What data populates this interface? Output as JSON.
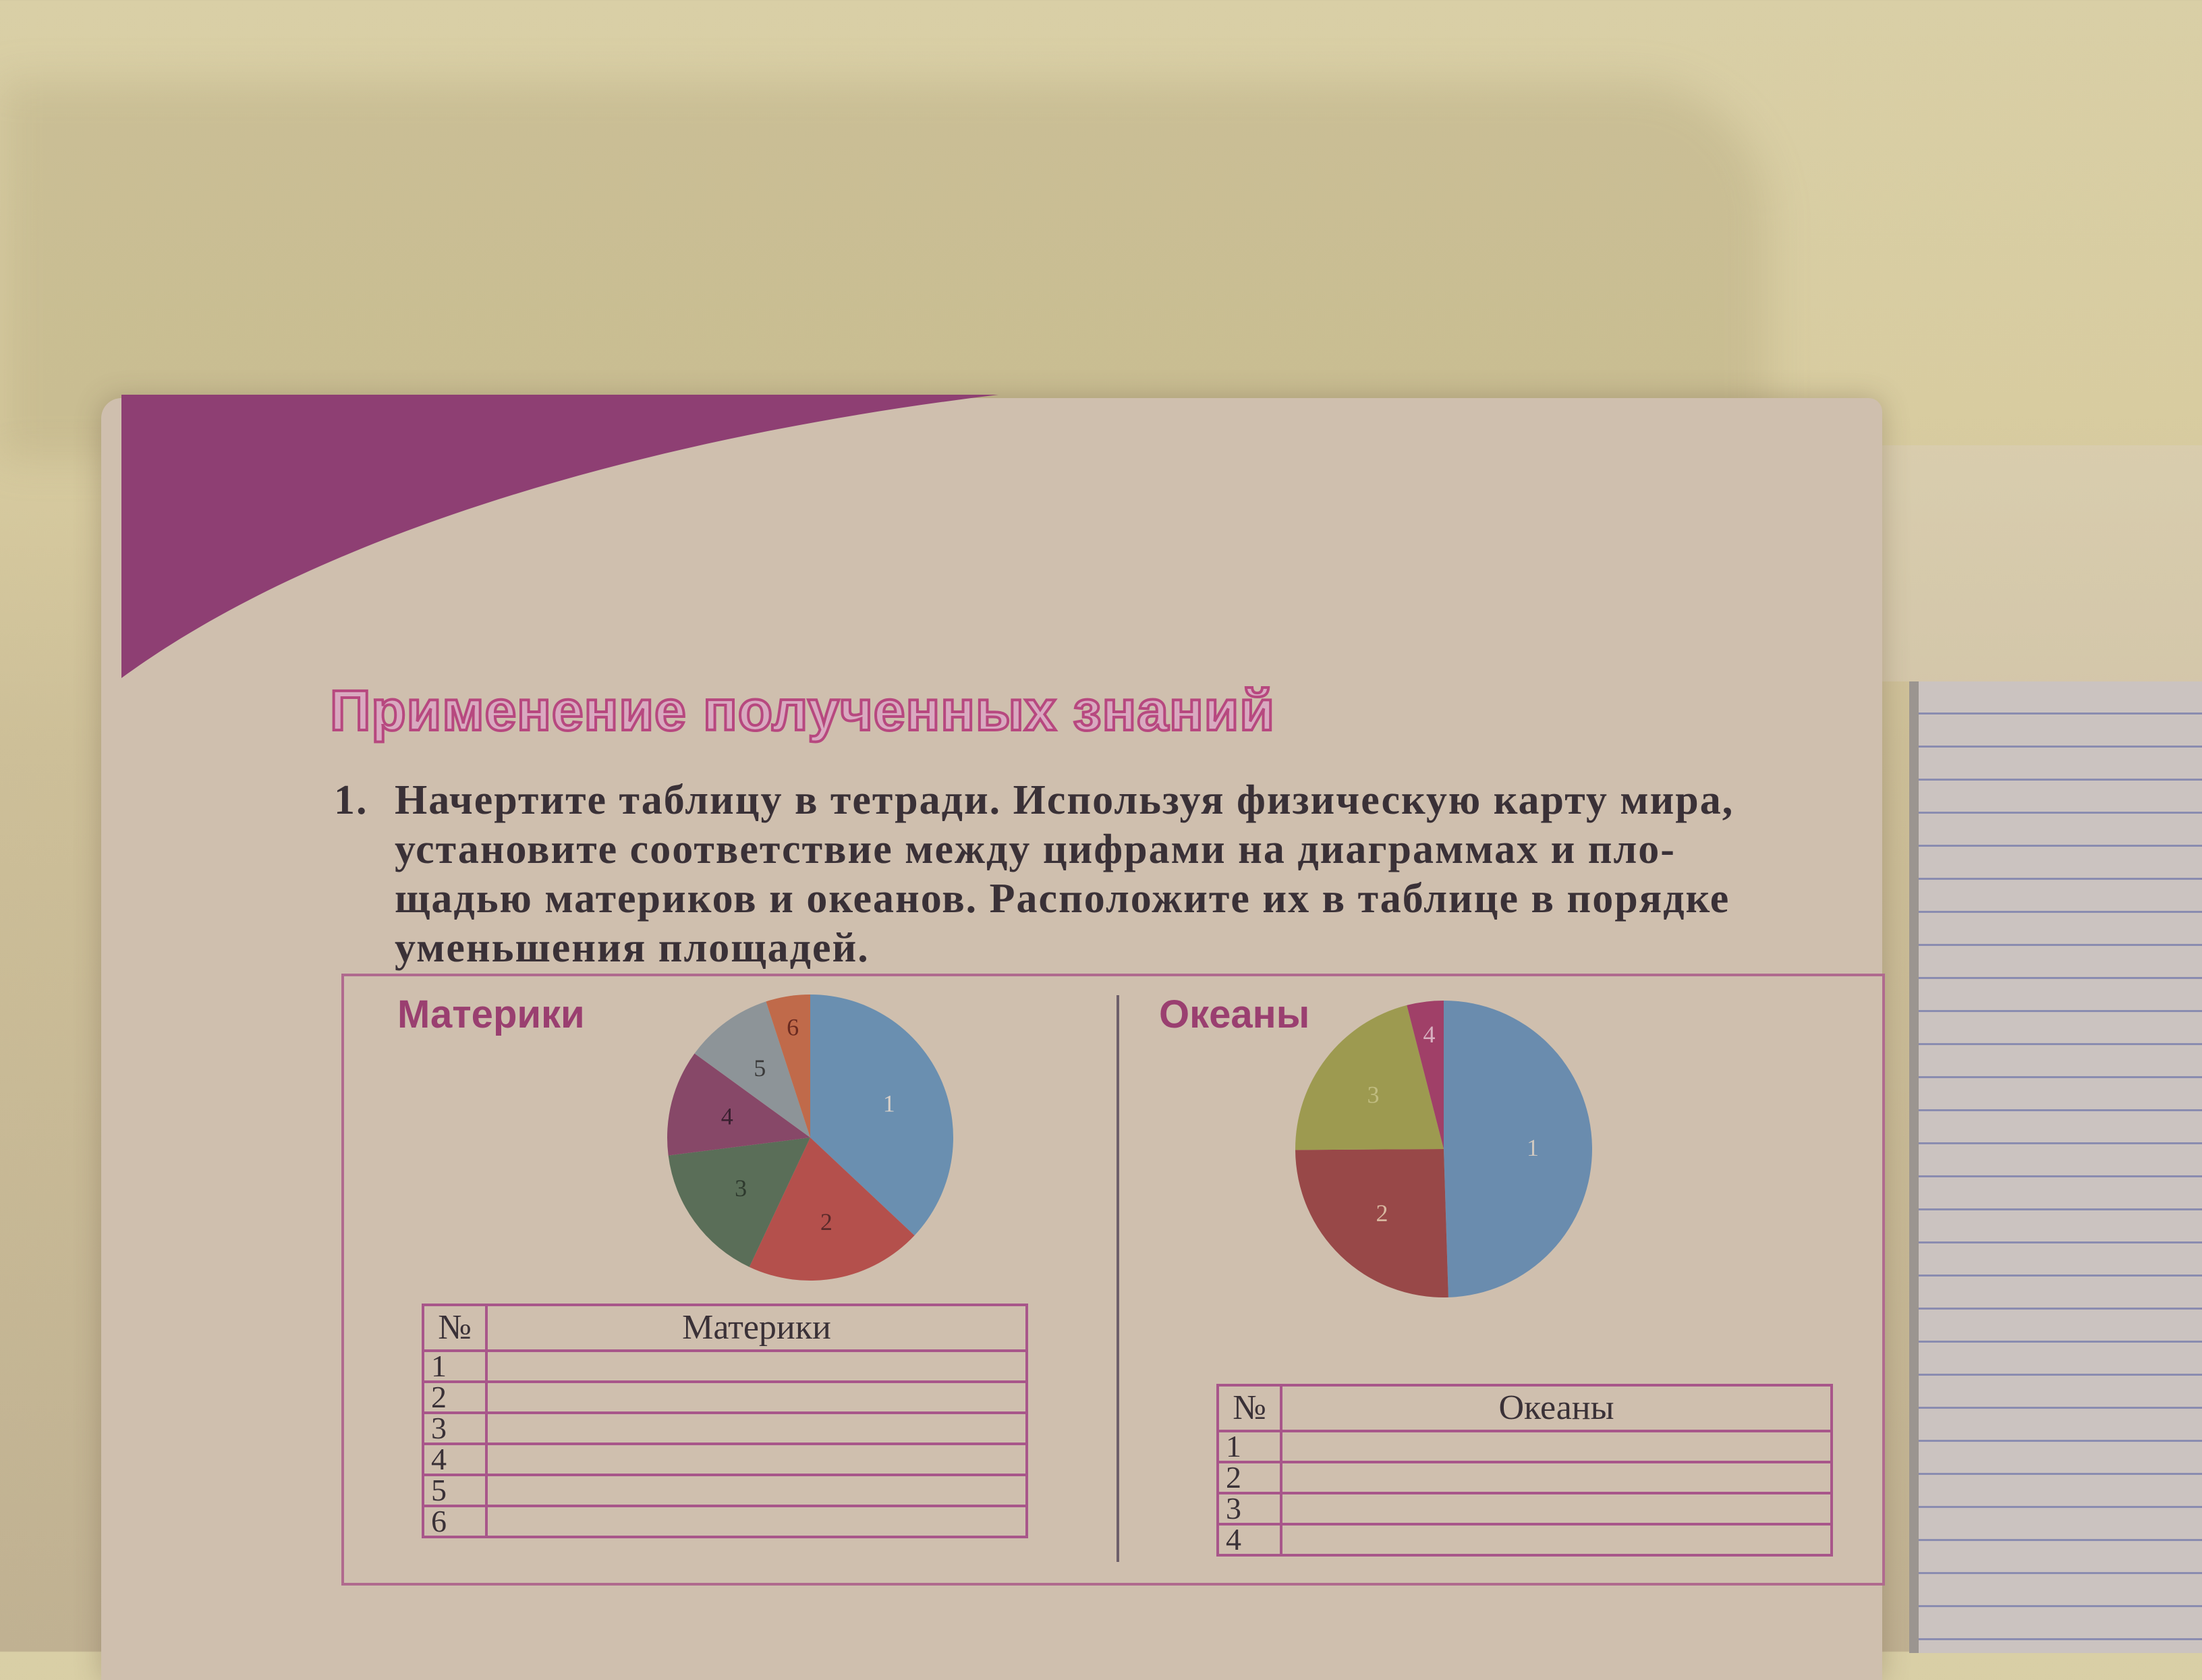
{
  "heading": "Применение полученных знаний",
  "task": {
    "number": "1.",
    "lines": [
      "Начертите таблицу в тетради. Используя  физическую карту мира,",
      "установите соответствие между цифрами на диаграммах и пло-",
      "щадью материков и океанов. Расположите их в таблице в порядке",
      "уменьшения площадей."
    ]
  },
  "colors": {
    "accent": "#9a3f70",
    "band": "#8e3f73"
  },
  "chart_data": [
    {
      "type": "pie",
      "title": "Материки",
      "categories": [
        "1",
        "2",
        "3",
        "4",
        "5",
        "6"
      ],
      "values": [
        37,
        20,
        16,
        12,
        10,
        5
      ],
      "colors": [
        "#6a8fb0",
        "#b4504c",
        "#5a6e58",
        "#874868",
        "#8d9498",
        "#c06a4a"
      ],
      "label_colors": [
        "#d8d0c8",
        "#5a2a2a",
        "#2e3a2e",
        "#3a2030",
        "#3a3a3a",
        "#6a2a20"
      ]
    },
    {
      "type": "pie",
      "title": "Океаны",
      "categories": [
        "1",
        "2",
        "3",
        "4"
      ],
      "values": [
        49.5,
        25.4,
        21.1,
        4.0
      ],
      "colors": [
        "#6a8cae",
        "#984848",
        "#9d9a50",
        "#a04068"
      ],
      "label_colors": [
        "#cfc8c0",
        "#d8b8a0",
        "#c0bc80",
        "#d8b0c0"
      ]
    }
  ],
  "table_continents": {
    "col_num": "№",
    "col_name": "Материки",
    "rows": [
      "1",
      "2",
      "3",
      "4",
      "5",
      "6"
    ]
  },
  "table_oceans": {
    "col_num": "№",
    "col_name": "Океаны",
    "rows": [
      "1",
      "2",
      "3",
      "4"
    ]
  }
}
